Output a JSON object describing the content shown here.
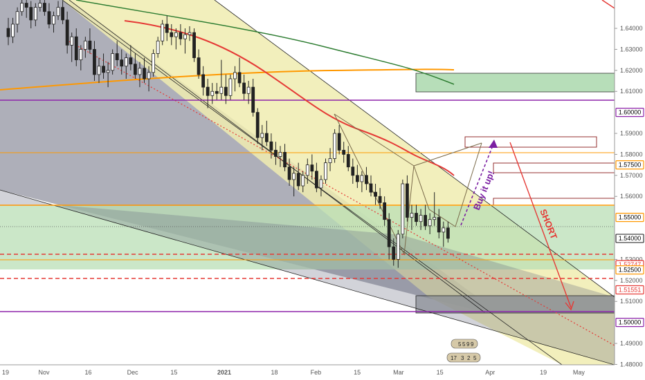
{
  "chart_data": {
    "type": "candlestick",
    "y_range": [
      1.4735,
      1.6535
    ],
    "x_range_days": [
      0,
      227
    ],
    "x_ticks": [
      {
        "label": "19",
        "day": 0
      },
      {
        "label": "Nov",
        "day": 13
      },
      {
        "label": "16",
        "day": 28
      },
      {
        "label": "Dec",
        "day": 43
      },
      {
        "label": "15",
        "day": 57
      },
      {
        "label": "2021",
        "day": 74
      },
      {
        "label": "18",
        "day": 91
      },
      {
        "label": "Feb",
        "day": 105
      },
      {
        "label": "15",
        "day": 119
      },
      {
        "label": "Mar",
        "day": 133
      },
      {
        "label": "15",
        "day": 147
      },
      {
        "label": "Apr",
        "day": 164
      },
      {
        "label": "19",
        "day": 182
      },
      {
        "label": "May",
        "day": 194
      }
    ],
    "y_ticks": [
      "1.64000",
      "1.63000",
      "1.62000",
      "1.61000",
      "1.59000",
      "1.58000",
      "1.57000",
      "1.56000",
      "1.53000",
      "1.52000",
      "1.51000",
      "1.49000",
      "1.48000"
    ],
    "price_tags": [
      {
        "label": "1.60000",
        "value": 1.6,
        "bg": "#ffffff",
        "fg": "#000000",
        "border": "#8e24aa"
      },
      {
        "label": "1.57500",
        "value": 1.575,
        "bg": "#ffffff",
        "fg": "#000000",
        "border": "#ff9800"
      },
      {
        "label": "1.55000",
        "value": 1.55,
        "bg": "#ffffff",
        "fg": "#000000",
        "border": "#ff9800"
      },
      {
        "label": "1.54000",
        "value": 1.54,
        "bg": "#ffffff",
        "fg": "#000000",
        "border": "#333333"
      },
      {
        "label": "1.52747",
        "value": 1.52747,
        "bg": "#ffffff",
        "fg": "#e53935",
        "border": "#e53935"
      },
      {
        "label": "1.52500",
        "value": 1.525,
        "bg": "#ffffff",
        "fg": "#000000",
        "border": "#ff9800"
      },
      {
        "label": "1.51551",
        "value": 1.51551,
        "bg": "#ffffff",
        "fg": "#e53935",
        "border": "#e53935"
      },
      {
        "label": "1.50000",
        "value": 1.5,
        "bg": "#ffffff",
        "fg": "#000000",
        "border": "#8e24aa"
      }
    ],
    "candles": [
      [
        0,
        1.64,
        1.645,
        1.632,
        1.636
      ],
      [
        1,
        1.636,
        1.645,
        1.633,
        1.642
      ],
      [
        2,
        1.642,
        1.65,
        1.638,
        1.648
      ],
      [
        3,
        1.648,
        1.655,
        1.646,
        1.652
      ],
      [
        4,
        1.652,
        1.654,
        1.645,
        1.65
      ],
      [
        5,
        1.65,
        1.653,
        1.64,
        1.644
      ],
      [
        6,
        1.644,
        1.652,
        1.641,
        1.65
      ],
      [
        7,
        1.65,
        1.656,
        1.648,
        1.652
      ],
      [
        8,
        1.652,
        1.655,
        1.646,
        1.648
      ],
      [
        9,
        1.648,
        1.652,
        1.64,
        1.642
      ],
      [
        10,
        1.642,
        1.648,
        1.638,
        1.646
      ],
      [
        11,
        1.646,
        1.653,
        1.644,
        1.65
      ],
      [
        12,
        1.65,
        1.653,
        1.642,
        1.644
      ],
      [
        13,
        1.644,
        1.648,
        1.628,
        1.632
      ],
      [
        14,
        1.632,
        1.638,
        1.624,
        1.636
      ],
      [
        15,
        1.636,
        1.64,
        1.622,
        1.625
      ],
      [
        16,
        1.625,
        1.632,
        1.62,
        1.63
      ],
      [
        17,
        1.63,
        1.636,
        1.626,
        1.634
      ],
      [
        18,
        1.634,
        1.64,
        1.628,
        1.63
      ],
      [
        19,
        1.63,
        1.634,
        1.615,
        1.618
      ],
      [
        20,
        1.618,
        1.626,
        1.614,
        1.622
      ],
      [
        21,
        1.622,
        1.628,
        1.616,
        1.619
      ],
      [
        22,
        1.619,
        1.624,
        1.612,
        1.62
      ],
      [
        23,
        1.62,
        1.63,
        1.618,
        1.628
      ],
      [
        24,
        1.628,
        1.634,
        1.622,
        1.625
      ],
      [
        25,
        1.625,
        1.63,
        1.618,
        1.622
      ],
      [
        26,
        1.622,
        1.628,
        1.616,
        1.626
      ],
      [
        27,
        1.626,
        1.632,
        1.62,
        1.623
      ],
      [
        28,
        1.623,
        1.628,
        1.616,
        1.618
      ],
      [
        29,
        1.618,
        1.624,
        1.612,
        1.621
      ],
      [
        30,
        1.621,
        1.626,
        1.614,
        1.616
      ],
      [
        31,
        1.616,
        1.622,
        1.61,
        1.619
      ],
      [
        32,
        1.619,
        1.63,
        1.617,
        1.628
      ],
      [
        33,
        1.628,
        1.636,
        1.626,
        1.634
      ],
      [
        34,
        1.634,
        1.644,
        1.632,
        1.642
      ],
      [
        35,
        1.642,
        1.646,
        1.634,
        1.638
      ],
      [
        36,
        1.638,
        1.642,
        1.632,
        1.636
      ],
      [
        37,
        1.636,
        1.64,
        1.63,
        1.638
      ],
      [
        38,
        1.638,
        1.642,
        1.632,
        1.635
      ],
      [
        39,
        1.635,
        1.64,
        1.628,
        1.637
      ],
      [
        40,
        1.637,
        1.641,
        1.634,
        1.638
      ],
      [
        41,
        1.638,
        1.64,
        1.624,
        1.626
      ],
      [
        42,
        1.626,
        1.63,
        1.616,
        1.618
      ],
      [
        43,
        1.618,
        1.622,
        1.608,
        1.612
      ],
      [
        44,
        1.612,
        1.616,
        1.602,
        1.608
      ],
      [
        45,
        1.608,
        1.614,
        1.604,
        1.61
      ],
      [
        46,
        1.61,
        1.614,
        1.606,
        1.609
      ],
      [
        47,
        1.609,
        1.625,
        1.606,
        1.612
      ],
      [
        48,
        1.612,
        1.618,
        1.604,
        1.608
      ],
      [
        49,
        1.608,
        1.618,
        1.606,
        1.616
      ],
      [
        50,
        1.616,
        1.622,
        1.61,
        1.619
      ],
      [
        51,
        1.619,
        1.626,
        1.612,
        1.614
      ],
      [
        52,
        1.614,
        1.618,
        1.606,
        1.609
      ],
      [
        53,
        1.609,
        1.615,
        1.604,
        1.612
      ],
      [
        54,
        1.612,
        1.616,
        1.598,
        1.6
      ],
      [
        55,
        1.6,
        1.602,
        1.585,
        1.588
      ],
      [
        56,
        1.588,
        1.594,
        1.582,
        1.59
      ],
      [
        57,
        1.59,
        1.596,
        1.584,
        1.586
      ],
      [
        58,
        1.586,
        1.59,
        1.578,
        1.582
      ],
      [
        59,
        1.582,
        1.586,
        1.575,
        1.579
      ],
      [
        60,
        1.579,
        1.584,
        1.574,
        1.581
      ],
      [
        61,
        1.581,
        1.585,
        1.572,
        1.574
      ],
      [
        62,
        1.574,
        1.578,
        1.565,
        1.568
      ],
      [
        63,
        1.568,
        1.574,
        1.56,
        1.571
      ],
      [
        64,
        1.571,
        1.576,
        1.563,
        1.565
      ],
      [
        65,
        1.565,
        1.572,
        1.562,
        1.57
      ],
      [
        66,
        1.57,
        1.578,
        1.566,
        1.575
      ],
      [
        67,
        1.575,
        1.58,
        1.568,
        1.572
      ],
      [
        68,
        1.572,
        1.576,
        1.562,
        1.564
      ],
      [
        69,
        1.564,
        1.57,
        1.56,
        1.568
      ],
      [
        70,
        1.568,
        1.578,
        1.566,
        1.576
      ],
      [
        71,
        1.576,
        1.583,
        1.572,
        1.578
      ],
      [
        72,
        1.578,
        1.592,
        1.576,
        1.59
      ],
      [
        73,
        1.59,
        1.594,
        1.58,
        1.582
      ],
      [
        74,
        1.582,
        1.586,
        1.576,
        1.58
      ],
      [
        75,
        1.58,
        1.584,
        1.572,
        1.574
      ],
      [
        76,
        1.574,
        1.578,
        1.566,
        1.57
      ],
      [
        77,
        1.57,
        1.575,
        1.564,
        1.567
      ],
      [
        78,
        1.567,
        1.572,
        1.562,
        1.57
      ],
      [
        79,
        1.57,
        1.574,
        1.563,
        1.566
      ],
      [
        80,
        1.566,
        1.57,
        1.56,
        1.562
      ],
      [
        81,
        1.562,
        1.566,
        1.556,
        1.56
      ],
      [
        82,
        1.56,
        1.564,
        1.554,
        1.557
      ],
      [
        83,
        1.557,
        1.56,
        1.546,
        1.549
      ],
      [
        84,
        1.549,
        1.552,
        1.53,
        1.536
      ],
      [
        85,
        1.536,
        1.54,
        1.527,
        1.53
      ],
      [
        86,
        1.53,
        1.544,
        1.526,
        1.542
      ],
      [
        87,
        1.542,
        1.568,
        1.54,
        1.566
      ],
      [
        88,
        1.566,
        1.57,
        1.548,
        1.55
      ],
      [
        89,
        1.55,
        1.556,
        1.544,
        1.552
      ],
      [
        90,
        1.552,
        1.556,
        1.546,
        1.548
      ],
      [
        91,
        1.548,
        1.554,
        1.544,
        1.551
      ],
      [
        92,
        1.551,
        1.556,
        1.544,
        1.546
      ],
      [
        93,
        1.546,
        1.552,
        1.542,
        1.549
      ],
      [
        94,
        1.549,
        1.562,
        1.546,
        1.55
      ],
      [
        95,
        1.55,
        1.554,
        1.54,
        1.543
      ],
      [
        96,
        1.543,
        1.548,
        1.536,
        1.545
      ],
      [
        97,
        1.545,
        1.548,
        1.538,
        1.54
      ]
    ],
    "annotations": [
      {
        "text": "Buy it up!",
        "color": "#7b1fa2"
      },
      {
        "text": "SHORT",
        "color": "#e53935"
      }
    ],
    "event_markers": [
      "5",
      "5",
      "9",
      "9",
      "17",
      "3",
      "2",
      "5"
    ]
  }
}
